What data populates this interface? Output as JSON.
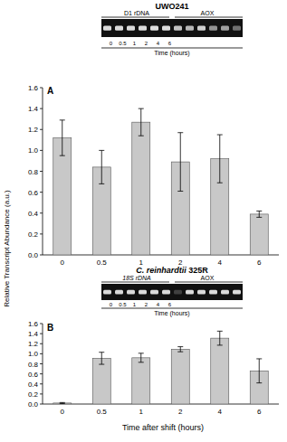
{
  "chart_data": [
    {
      "type": "bar",
      "title": "UWO241",
      "panel": "A",
      "ylabel": "Relative Transcript Abundance (a.u.)",
      "categories": [
        "0",
        "0.5",
        "1",
        "2",
        "4",
        "6"
      ],
      "values": [
        1.12,
        0.84,
        1.27,
        0.89,
        0.92,
        0.39
      ],
      "errors": [
        0.17,
        0.16,
        0.13,
        0.28,
        0.23,
        0.03
      ],
      "color": "#c8c8c8",
      "ylim": [
        0,
        1.6
      ],
      "yticks": [
        {
          "value": 0,
          "label": "0.0"
        },
        0.2,
        0.4,
        0.6,
        0.8,
        {
          "value": 1,
          "label": "1.0"
        },
        1.2,
        1.4,
        1.6
      ],
      "inset": {
        "left_label": "D1 rDNA",
        "right_label": "AOX",
        "lanes": [
          "0",
          "0.5",
          "1",
          "2",
          "4",
          "6"
        ],
        "axis_label": "Time (hours)"
      }
    },
    {
      "type": "bar",
      "title": "C. reinhardtii 325R",
      "panel": "B",
      "xlabel": "Time after shift (hours)",
      "categories": [
        "0",
        "0.5",
        "1",
        "2",
        "4",
        "6"
      ],
      "values": [
        0.02,
        0.91,
        0.92,
        1.09,
        1.31,
        0.66
      ],
      "errors": [
        0.01,
        0.12,
        0.09,
        0.05,
        0.14,
        0.24
      ],
      "color": "#c8c8c8",
      "ylim": [
        0,
        1.6
      ],
      "yticks": [
        {
          "value": 0,
          "label": "0.0"
        },
        0.2,
        0.4,
        0.6,
        0.8,
        {
          "value": 1,
          "label": "1.0"
        },
        1.2,
        1.4,
        1.6
      ],
      "inset": {
        "left_label": "18S rDNA",
        "right_label": "AOX",
        "lanes": [
          "0",
          "0.5",
          "1",
          "2",
          "4",
          "6"
        ],
        "axis_label": "Time (hours)"
      }
    }
  ]
}
